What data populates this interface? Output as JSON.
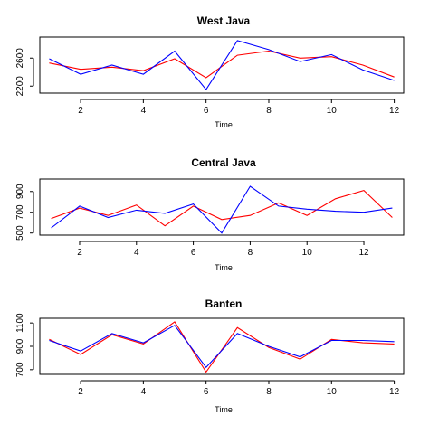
{
  "colors": {
    "series_a": "#ff0000",
    "series_b": "#0000ff"
  },
  "chart_data": [
    {
      "type": "line",
      "title": "West Java",
      "xlabel": "Time",
      "ylabel": "",
      "x": [
        1,
        2,
        3,
        4,
        5,
        6,
        7,
        8,
        9,
        10,
        11,
        12
      ],
      "xlim": [
        0.7,
        12.3
      ],
      "ylim": [
        2100,
        2900
      ],
      "xticks": [
        2,
        4,
        6,
        8,
        10,
        12
      ],
      "yticks": [
        2200,
        2600
      ],
      "grid": false,
      "series": [
        {
          "color": "#ff0000",
          "values": [
            2530,
            2440,
            2470,
            2420,
            2590,
            2320,
            2640,
            2700,
            2600,
            2620,
            2500,
            2330
          ]
        },
        {
          "color": "#0000ff",
          "values": [
            2590,
            2370,
            2500,
            2370,
            2700,
            2150,
            2850,
            2720,
            2550,
            2650,
            2430,
            2280
          ]
        }
      ]
    },
    {
      "type": "line",
      "title": "Central Java",
      "xlabel": "Time",
      "ylabel": "",
      "x": [
        1,
        2,
        3,
        4,
        5,
        6,
        7,
        8,
        9,
        10,
        11,
        12,
        13
      ],
      "xlim": [
        0.6,
        13.4
      ],
      "ylim": [
        480,
        1020
      ],
      "xticks": [
        2,
        4,
        6,
        8,
        10,
        12
      ],
      "yticks": [
        500,
        700,
        900
      ],
      "grid": false,
      "series": [
        {
          "color": "#ff0000",
          "values": [
            640,
            740,
            670,
            770,
            570,
            760,
            630,
            670,
            790,
            670,
            830,
            910,
            650
          ]
        },
        {
          "color": "#0000ff",
          "values": [
            550,
            760,
            650,
            720,
            690,
            780,
            500,
            950,
            760,
            730,
            710,
            700,
            740
          ]
        }
      ]
    },
    {
      "type": "line",
      "title": "Banten",
      "xlabel": "Time",
      "ylabel": "",
      "x": [
        1,
        2,
        3,
        4,
        5,
        6,
        7,
        8,
        9,
        10,
        11,
        12
      ],
      "xlim": [
        0.7,
        12.3
      ],
      "ylim": [
        660,
        1140
      ],
      "xticks": [
        2,
        4,
        6,
        8,
        10,
        12
      ],
      "yticks": [
        700,
        900,
        1100
      ],
      "grid": false,
      "series": [
        {
          "color": "#ff0000",
          "values": [
            960,
            830,
            1000,
            920,
            1110,
            680,
            1060,
            890,
            790,
            960,
            930,
            920
          ]
        },
        {
          "color": "#0000ff",
          "values": [
            950,
            860,
            1010,
            930,
            1080,
            720,
            1010,
            900,
            810,
            950,
            950,
            940
          ]
        }
      ]
    }
  ]
}
